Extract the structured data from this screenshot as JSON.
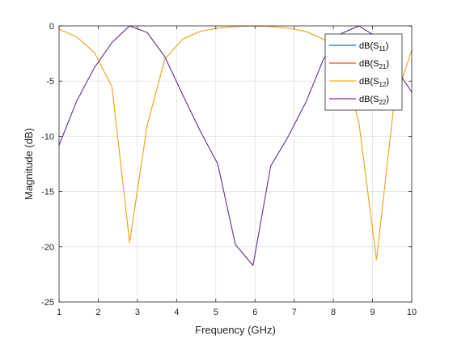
{
  "chart_data": {
    "type": "line",
    "xlabel": "Frequency (GHz)",
    "ylabel": "Magnitude (dB)",
    "xlim": [
      1,
      10
    ],
    "ylim": [
      -25,
      0
    ],
    "x_ticks": [
      1,
      2,
      3,
      4,
      5,
      6,
      7,
      8,
      9,
      10
    ],
    "y_ticks": [
      0,
      -5,
      -10,
      -15,
      -20,
      -25
    ],
    "grid": true,
    "legend_placement": "top-right",
    "series": [
      {
        "name": "dB(S11)",
        "base": "dB(S",
        "sub": "11",
        "color": "#0072BD",
        "x": [
          1.0,
          1.45,
          1.9,
          2.35,
          2.8,
          3.25,
          3.7,
          4.15,
          4.6,
          5.05,
          5.5,
          5.95,
          6.4,
          6.85,
          7.3,
          7.75,
          8.2,
          8.65,
          9.1,
          9.55,
          10.0
        ],
        "y": [
          -10.8,
          -6.8,
          -3.8,
          -1.5,
          0.0,
          -0.6,
          -2.8,
          -6.2,
          -9.5,
          -12.5,
          -19.8,
          -21.7,
          -12.7,
          -10.0,
          -6.9,
          -3.0,
          -0.7,
          0.0,
          -1.0,
          -3.6,
          -6.0
        ]
      },
      {
        "name": "dB(S21)",
        "base": "dB(S",
        "sub": "21",
        "color": "#D95319",
        "x": [
          1.0,
          1.45,
          1.9,
          2.35,
          2.8,
          3.25,
          3.7,
          4.15,
          4.6,
          5.05,
          5.5,
          5.95,
          6.4,
          6.85,
          7.3,
          7.75,
          8.2,
          8.65,
          9.1,
          9.55,
          10.0
        ],
        "y": [
          -0.3,
          -1.0,
          -2.4,
          -5.5,
          -19.6,
          -9.0,
          -3.0,
          -1.2,
          -0.5,
          -0.2,
          -0.05,
          0.0,
          -0.05,
          -0.2,
          -0.5,
          -1.2,
          -3.0,
          -8.7,
          -21.2,
          -7.0,
          -2.2
        ]
      },
      {
        "name": "dB(S12)",
        "base": "dB(S",
        "sub": "12",
        "color": "#EDB120",
        "x": [
          1.0,
          1.45,
          1.9,
          2.35,
          2.8,
          3.25,
          3.7,
          4.15,
          4.6,
          5.05,
          5.5,
          5.95,
          6.4,
          6.85,
          7.3,
          7.75,
          8.2,
          8.65,
          9.1,
          9.55,
          10.0
        ],
        "y": [
          -0.3,
          -1.0,
          -2.4,
          -5.5,
          -19.6,
          -9.0,
          -3.0,
          -1.2,
          -0.5,
          -0.2,
          -0.05,
          0.0,
          -0.05,
          -0.2,
          -0.5,
          -1.2,
          -3.0,
          -8.7,
          -21.2,
          -7.0,
          -2.2
        ]
      },
      {
        "name": "dB(S22)",
        "base": "dB(S",
        "sub": "22",
        "color": "#7E2F8E",
        "x": [
          1.0,
          1.45,
          1.9,
          2.35,
          2.8,
          3.25,
          3.7,
          4.15,
          4.6,
          5.05,
          5.5,
          5.95,
          6.4,
          6.85,
          7.3,
          7.75,
          8.2,
          8.65,
          9.1,
          9.55,
          10.0
        ],
        "y": [
          -10.8,
          -6.8,
          -3.8,
          -1.5,
          0.0,
          -0.6,
          -2.8,
          -6.2,
          -9.5,
          -12.5,
          -19.8,
          -21.7,
          -12.7,
          -10.0,
          -6.9,
          -3.0,
          -0.7,
          0.0,
          -1.0,
          -3.6,
          -6.0
        ]
      }
    ]
  }
}
